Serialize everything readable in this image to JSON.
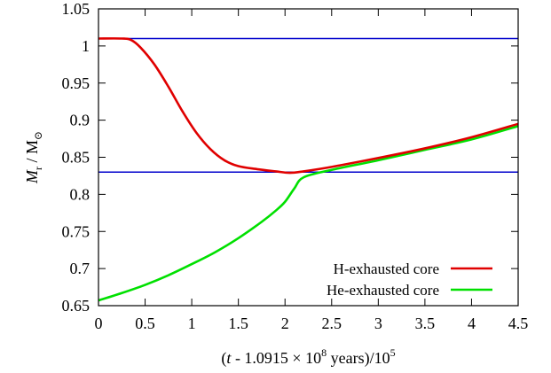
{
  "chart_data": {
    "type": "line",
    "xlabel": {
      "open": "(",
      "t": "t",
      "rest": " - 1.0915 × 10",
      "sup": "8",
      "tail": " years)/10",
      "sup2": "5"
    },
    "ylabel": {
      "m": "M",
      "sub": "r",
      "rest": " / M",
      "sun": "⊙"
    },
    "xlim": [
      0,
      4.5
    ],
    "ylim": [
      0.65,
      1.05
    ],
    "xticks": [
      "0",
      "0.5",
      "1",
      "1.5",
      "2",
      "2.5",
      "3",
      "3.5",
      "4",
      "4.5"
    ],
    "yticks": [
      "0.65",
      "0.7",
      "0.75",
      "0.8",
      "0.85",
      "0.9",
      "0.95",
      "1",
      "1.05"
    ],
    "xtick_values": [
      0,
      0.5,
      1,
      1.5,
      2,
      2.5,
      3,
      3.5,
      4,
      4.5
    ],
    "ytick_values": [
      0.65,
      0.7,
      0.75,
      0.8,
      0.85,
      0.9,
      0.95,
      1,
      1.05
    ],
    "grid": false,
    "legend_position": "bottom-right",
    "series": [
      {
        "name": "H-exhausted core",
        "color": "#e00000",
        "x": [
          0,
          0.25,
          0.35,
          0.45,
          0.6,
          0.75,
          0.9,
          1.05,
          1.2,
          1.35,
          1.5,
          1.7,
          1.9,
          2.05,
          2.2,
          2.5,
          3.0,
          3.5,
          4.0,
          4.5
        ],
        "y": [
          1.01,
          1.01,
          1.008,
          0.998,
          0.975,
          0.945,
          0.912,
          0.883,
          0.861,
          0.846,
          0.838,
          0.834,
          0.831,
          0.829,
          0.831,
          0.837,
          0.849,
          0.862,
          0.877,
          0.895
        ]
      },
      {
        "name": "He-exhausted core",
        "color": "#00e000",
        "x": [
          0,
          0.25,
          0.5,
          0.75,
          1.0,
          1.25,
          1.5,
          1.75,
          1.9,
          2.0,
          2.1,
          2.2,
          2.5,
          3.0,
          3.5,
          4.0,
          4.5
        ],
        "y": [
          0.657,
          0.667,
          0.678,
          0.691,
          0.706,
          0.722,
          0.741,
          0.763,
          0.778,
          0.79,
          0.808,
          0.823,
          0.833,
          0.846,
          0.86,
          0.874,
          0.892
        ]
      },
      {
        "name": "",
        "color": "#0000cc",
        "x": [
          0,
          4.5
        ],
        "y": [
          1.01,
          1.01
        ]
      },
      {
        "name": "",
        "color": "#0000cc",
        "x": [
          0,
          4.5
        ],
        "y": [
          0.83,
          0.83
        ]
      }
    ]
  }
}
